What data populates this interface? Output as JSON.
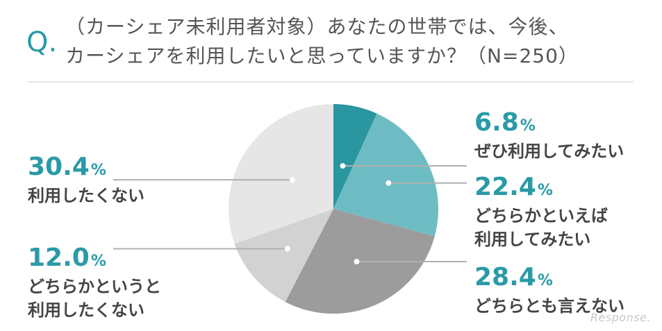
{
  "question": {
    "mark": "Q.",
    "line1": "（カーシェア未利用者対象）あなたの世帯では、今後、",
    "line2": "カーシェアを利用したいと思っていますか？（N=250）"
  },
  "chart_data": {
    "type": "pie",
    "title": "（カーシェア未利用者対象）あなたの世帯では、今後、カーシェアを利用したいと思っていますか？（N=250）",
    "slices": [
      {
        "label": "ぜひ利用してみたい",
        "value": 6.8,
        "color": "#2a96a0"
      },
      {
        "label": "どちらかといえば 利用してみたい",
        "value": 22.4,
        "color": "#6ebcc3"
      },
      {
        "label": "どちらとも言えない",
        "value": 28.4,
        "color": "#9c9c9c"
      },
      {
        "label": "どちらかというと 利用したくない",
        "value": 12.0,
        "color": "#d2d2d2"
      },
      {
        "label": "利用したくない",
        "value": 30.4,
        "color": "#e6e6e6"
      }
    ],
    "value_suffix": "%",
    "start_angle": "12 o'clock",
    "direction": "clockwise",
    "legend": "none (callout labels)"
  },
  "labels": [
    {
      "value": "6.8",
      "unit": "%",
      "lines": [
        "ぜひ利用してみたい"
      ]
    },
    {
      "value": "22.4",
      "unit": "%",
      "lines": [
        "どちらかといえば",
        "利用してみたい"
      ]
    },
    {
      "value": "28.4",
      "unit": "%",
      "lines": [
        "どちらとも言えない"
      ]
    },
    {
      "value": "12.0",
      "unit": "%",
      "lines": [
        "どちらかというと",
        "利用したくない"
      ]
    },
    {
      "value": "30.4",
      "unit": "%",
      "lines": [
        "利用したくない"
      ]
    }
  ],
  "colors": {
    "accent": "#2a9aa6",
    "leader": "#b0b0b0",
    "text": "#444444"
  },
  "watermark": "Response."
}
